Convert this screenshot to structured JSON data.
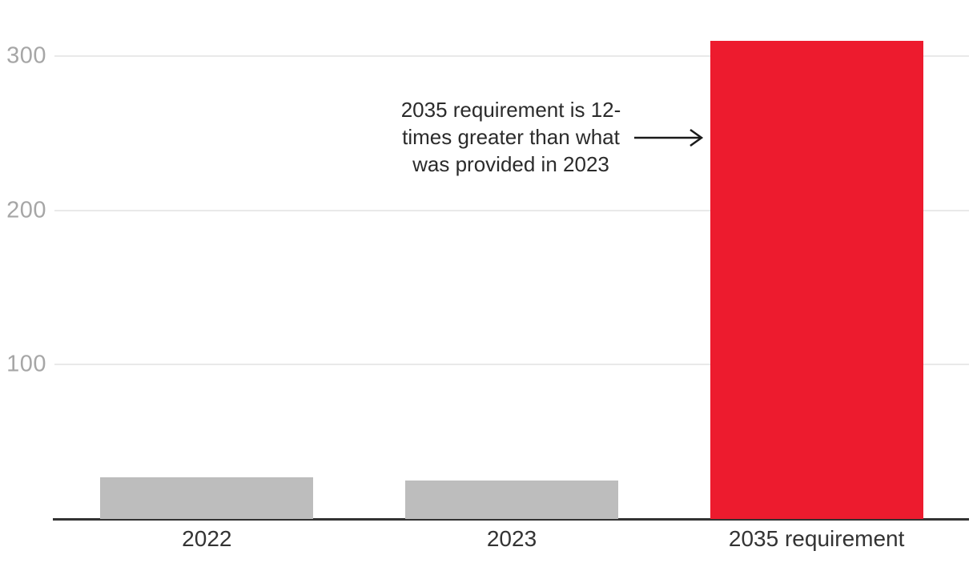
{
  "chart_data": {
    "type": "bar",
    "title": "",
    "xlabel": "",
    "ylabel": "",
    "categories": [
      "2022",
      "2023",
      "2035 requirement"
    ],
    "values": [
      27,
      25,
      310
    ],
    "bar_colors": [
      "#bdbdbd",
      "#bdbdbd",
      "#ed1b2e"
    ],
    "yticks": [
      100,
      200,
      300
    ],
    "ylim": [
      0,
      320
    ],
    "grid": "horizontal-only",
    "legend": "none",
    "annotation": {
      "lines": [
        "2035 requirement is 12-",
        "times greater than what",
        "was provided in 2023"
      ],
      "arrow": "horizontal arrow pointing right at 2035 requirement bar"
    }
  },
  "colors": {
    "highlight_red": "#ed1b2e",
    "bar_gray": "#bdbdbd",
    "gridline": "#e9e9e9",
    "axis": "#333333",
    "ytick_text": "#a6a6a6",
    "xtick_text": "#333333",
    "annotation_text": "#2b2b2b",
    "arrow": "#1a1a1a"
  }
}
